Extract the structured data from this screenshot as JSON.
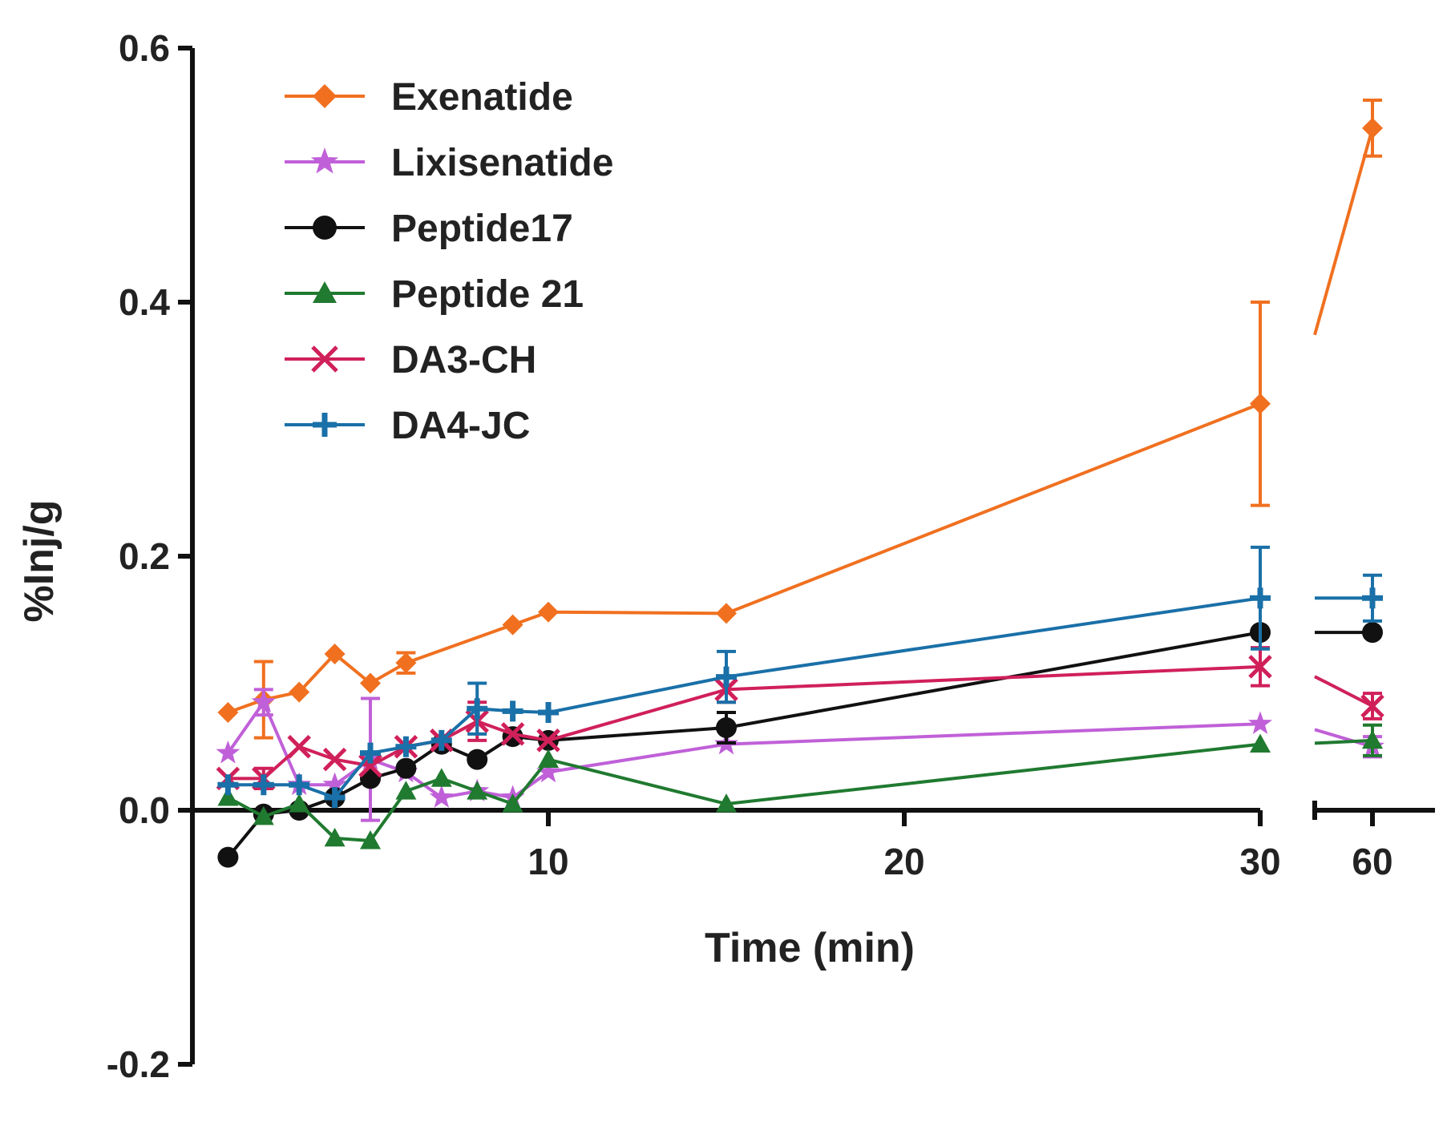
{
  "chart_data": {
    "type": "line",
    "xlabel": "Time (min)",
    "ylabel": "%Inj/g",
    "ylim": [
      -0.2,
      0.6
    ],
    "yticks": [
      "-0.2",
      "0.0",
      "0.2",
      "0.4",
      "0.6"
    ],
    "xlim_segment1": [
      0,
      30
    ],
    "xticks": [
      "10",
      "20",
      "30",
      "60"
    ],
    "x_axis_break": "between 30 and 60",
    "legend_position": "top-left",
    "x": [
      1,
      2,
      3,
      4,
      5,
      6,
      7,
      8,
      9,
      10,
      15,
      30,
      60
    ],
    "series": [
      {
        "name": "Exenatide",
        "color": "#f07020",
        "marker": "diamond",
        "values": [
          0.077,
          0.087,
          0.093,
          0.123,
          0.1,
          0.116,
          null,
          null,
          0.146,
          0.156,
          0.155,
          0.32,
          0.537
        ],
        "errors": [
          0.004,
          0.03,
          0.004,
          0.005,
          0.005,
          0.008,
          null,
          null,
          0.004,
          0.004,
          0.005,
          0.08,
          0.022
        ]
      },
      {
        "name": "Lixisenatide",
        "color": "#c060d8",
        "marker": "star",
        "values": [
          0.045,
          0.085,
          0.02,
          0.02,
          0.04,
          0.03,
          0.01,
          0.015,
          0.01,
          0.03,
          0.052,
          0.068,
          0.05
        ],
        "errors": [
          0.005,
          0.01,
          0.005,
          0.005,
          0.048,
          0.005,
          0.005,
          0.005,
          0.005,
          0.005,
          0.006,
          0.006,
          0.008
        ]
      },
      {
        "name": "Peptide17",
        "color": "#111111",
        "marker": "circle",
        "values": [
          -0.037,
          -0.003,
          0.0,
          0.01,
          0.025,
          0.033,
          0.052,
          0.04,
          0.058,
          0.055,
          0.065,
          0.14,
          0.14
        ],
        "errors": [
          0.003,
          0.005,
          0.004,
          0.004,
          0.005,
          0.005,
          0.005,
          0.006,
          0.005,
          0.004,
          0.012,
          0.006,
          0.005
        ]
      },
      {
        "name": "Peptide 21",
        "color": "#207a30",
        "marker": "triangle",
        "values": [
          0.01,
          -0.005,
          0.005,
          -0.022,
          -0.024,
          0.015,
          0.025,
          0.015,
          0.005,
          0.04,
          0.005,
          0.052,
          0.055
        ],
        "errors": [
          0.004,
          0.004,
          0.004,
          0.004,
          0.004,
          0.005,
          0.005,
          0.005,
          0.004,
          0.005,
          0.004,
          0.006,
          0.012
        ]
      },
      {
        "name": "DA3-CH",
        "color": "#d0205a",
        "marker": "x",
        "values": [
          0.025,
          0.025,
          0.05,
          0.04,
          0.035,
          0.05,
          0.055,
          0.07,
          0.06,
          0.055,
          0.095,
          0.113,
          0.082
        ],
        "errors": [
          0.005,
          0.008,
          0.005,
          0.005,
          0.005,
          0.005,
          0.005,
          0.015,
          0.005,
          0.005,
          0.01,
          0.015,
          0.01
        ]
      },
      {
        "name": "DA4-JC",
        "color": "#1a70a8",
        "marker": "plus",
        "values": [
          0.02,
          0.02,
          0.02,
          0.01,
          0.045,
          0.05,
          0.055,
          0.08,
          0.078,
          0.077,
          0.105,
          0.167,
          0.167
        ],
        "errors": [
          0.004,
          0.004,
          0.004,
          0.004,
          0.005,
          0.005,
          0.005,
          0.02,
          0.005,
          0.005,
          0.02,
          0.04,
          0.018
        ]
      }
    ]
  }
}
